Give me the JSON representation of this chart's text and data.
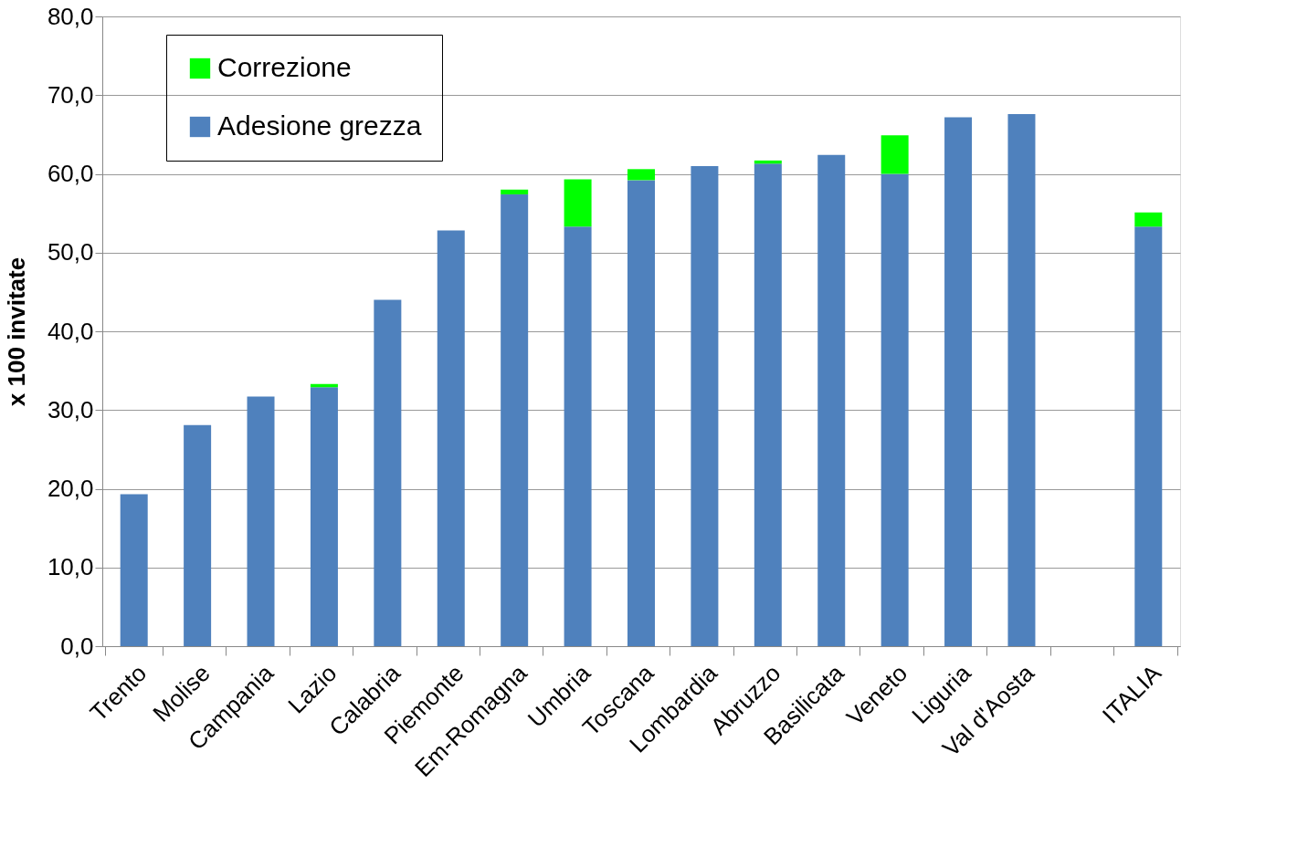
{
  "chart_data": {
    "type": "bar",
    "ylabel": "x 100 invitate",
    "stacked": true,
    "legend": "top left",
    "grid": "y",
    "categories": [
      "Trento",
      "Molise",
      "Campania",
      "Lazio",
      "Calabria",
      "Piemonte",
      "Em-Romagna",
      "Umbria",
      "Toscana",
      "Lombardia",
      "Abruzzo",
      "Basilicata",
      "Veneto",
      "Liguria",
      "Val d'Aosta",
      null,
      "ITALIA"
    ],
    "series": [
      {
        "name": "Adesione grezza",
        "color": "#4f81bd",
        "values": [
          19.3,
          28.1,
          31.7,
          32.9,
          44.0,
          52.8,
          57.4,
          53.3,
          59.2,
          61.0,
          61.3,
          62.4,
          60.0,
          67.2,
          67.6,
          null,
          53.3
        ]
      },
      {
        "name": "Correzione",
        "color": "#00ff00",
        "values": [
          null,
          null,
          null,
          0.4,
          null,
          null,
          0.6,
          6.0,
          1.4,
          null,
          0.4,
          null,
          4.9,
          null,
          null,
          null,
          1.8
        ]
      }
    ],
    "ylim": [
      0,
      80
    ],
    "yticks": [
      {
        "value": 0,
        "label": "0,0"
      },
      {
        "value": 10,
        "label": "10,0"
      },
      {
        "value": 20,
        "label": "20,0"
      },
      {
        "value": 30,
        "label": "30,0"
      },
      {
        "value": 40,
        "label": "40,0"
      },
      {
        "value": 50,
        "label": "50,0"
      },
      {
        "value": 60,
        "label": "60,0"
      },
      {
        "value": 70,
        "label": "70,0"
      },
      {
        "value": 80,
        "label": "80,0"
      }
    ]
  }
}
